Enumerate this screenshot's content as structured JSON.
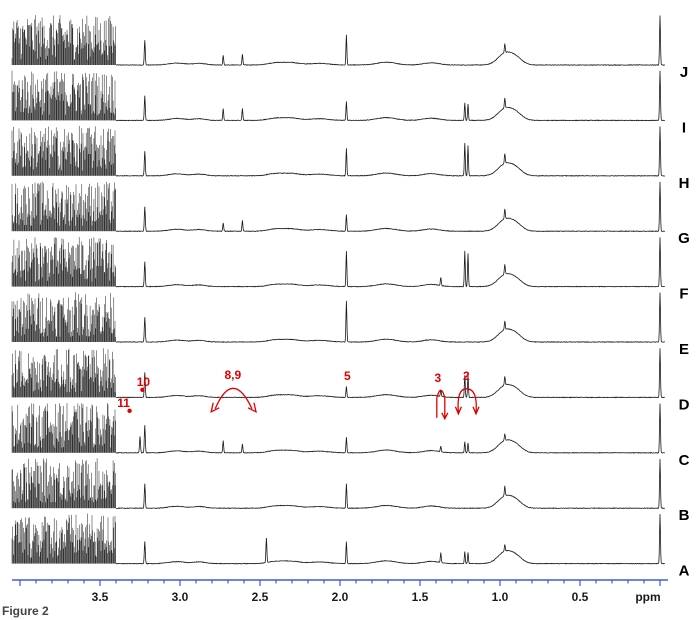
{
  "chart_data": {
    "type": "line",
    "title": "",
    "xlabel": "ppm",
    "ylabel": "",
    "x_reversed": true,
    "xlim": [
      4.05,
      -0.05
    ],
    "x_ticks": [
      3.5,
      3.0,
      2.5,
      2.0,
      1.5,
      1.0,
      0.5
    ],
    "x_tick_labels": [
      "3.5",
      "3.0",
      "2.5",
      "2.0",
      "1.5",
      "1.0",
      "0.5"
    ],
    "grid": false,
    "colors": {
      "trace": "#1a1a1a",
      "axis": "#1a3fd6",
      "annotation": "#e00000"
    },
    "series": [
      {
        "name": "J",
        "peaks": [
          [
            3.22,
            0.45
          ],
          [
            2.73,
            0.18
          ],
          [
            2.61,
            0.2
          ],
          [
            1.96,
            0.55
          ],
          [
            0.97,
            0.16
          ],
          [
            0.0,
            0.9
          ]
        ]
      },
      {
        "name": "I",
        "peaks": [
          [
            3.22,
            0.45
          ],
          [
            2.73,
            0.22
          ],
          [
            2.61,
            0.22
          ],
          [
            1.96,
            0.35
          ],
          [
            1.22,
            0.32
          ],
          [
            1.2,
            0.3
          ],
          [
            0.97,
            0.18
          ],
          [
            0.0,
            0.9
          ]
        ]
      },
      {
        "name": "H",
        "peaks": [
          [
            3.22,
            0.45
          ],
          [
            1.96,
            0.5
          ],
          [
            1.22,
            0.6
          ],
          [
            1.2,
            0.55
          ],
          [
            0.97,
            0.18
          ],
          [
            0.0,
            0.9
          ]
        ]
      },
      {
        "name": "G",
        "peaks": [
          [
            3.22,
            0.45
          ],
          [
            2.73,
            0.15
          ],
          [
            2.61,
            0.2
          ],
          [
            1.96,
            0.3
          ],
          [
            0.97,
            0.18
          ],
          [
            0.0,
            0.9
          ]
        ]
      },
      {
        "name": "F",
        "peaks": [
          [
            3.22,
            0.45
          ],
          [
            1.96,
            0.65
          ],
          [
            1.37,
            0.15
          ],
          [
            1.22,
            0.65
          ],
          [
            1.2,
            0.6
          ],
          [
            0.97,
            0.18
          ],
          [
            0.0,
            0.9
          ]
        ]
      },
      {
        "name": "E",
        "peaks": [
          [
            3.22,
            0.45
          ],
          [
            1.96,
            0.75
          ],
          [
            0.97,
            0.16
          ],
          [
            0.0,
            0.9
          ]
        ]
      },
      {
        "name": "D",
        "peaks": [
          [
            3.22,
            0.45
          ],
          [
            1.96,
            0.2
          ],
          [
            1.37,
            0.12
          ],
          [
            1.22,
            0.4
          ],
          [
            1.2,
            0.4
          ],
          [
            0.97,
            0.16
          ],
          [
            0.0,
            0.9
          ]
        ]
      },
      {
        "name": "C",
        "peaks": [
          [
            3.25,
            0.3
          ],
          [
            3.22,
            0.5
          ],
          [
            2.73,
            0.22
          ],
          [
            2.61,
            0.16
          ],
          [
            1.96,
            0.28
          ],
          [
            1.37,
            0.1
          ],
          [
            1.22,
            0.2
          ],
          [
            1.2,
            0.18
          ],
          [
            0.97,
            0.12
          ],
          [
            0.0,
            0.9
          ]
        ]
      },
      {
        "name": "B",
        "peaks": [
          [
            3.22,
            0.45
          ],
          [
            1.96,
            0.45
          ],
          [
            0.97,
            0.18
          ],
          [
            0.0,
            0.9
          ]
        ]
      },
      {
        "name": "A",
        "peaks": [
          [
            3.22,
            0.4
          ],
          [
            2.46,
            0.45
          ],
          [
            1.96,
            0.4
          ],
          [
            1.37,
            0.18
          ],
          [
            1.22,
            0.22
          ],
          [
            1.2,
            0.2
          ],
          [
            0.97,
            0.12
          ],
          [
            0.0,
            0.9
          ]
        ]
      }
    ],
    "annotations": [
      {
        "label": "10",
        "ppm": 3.235,
        "series": "C"
      },
      {
        "label": "11",
        "ppm": 3.265,
        "series": "C"
      },
      {
        "label": "8,9",
        "ppm": 2.67,
        "series": "C"
      },
      {
        "label": "5",
        "ppm": 1.96,
        "series": "C"
      },
      {
        "label": "3",
        "ppm": 1.37,
        "series": "C"
      },
      {
        "label": "2",
        "ppm": 1.21,
        "series": "C"
      }
    ]
  },
  "caption": "Figure 2"
}
